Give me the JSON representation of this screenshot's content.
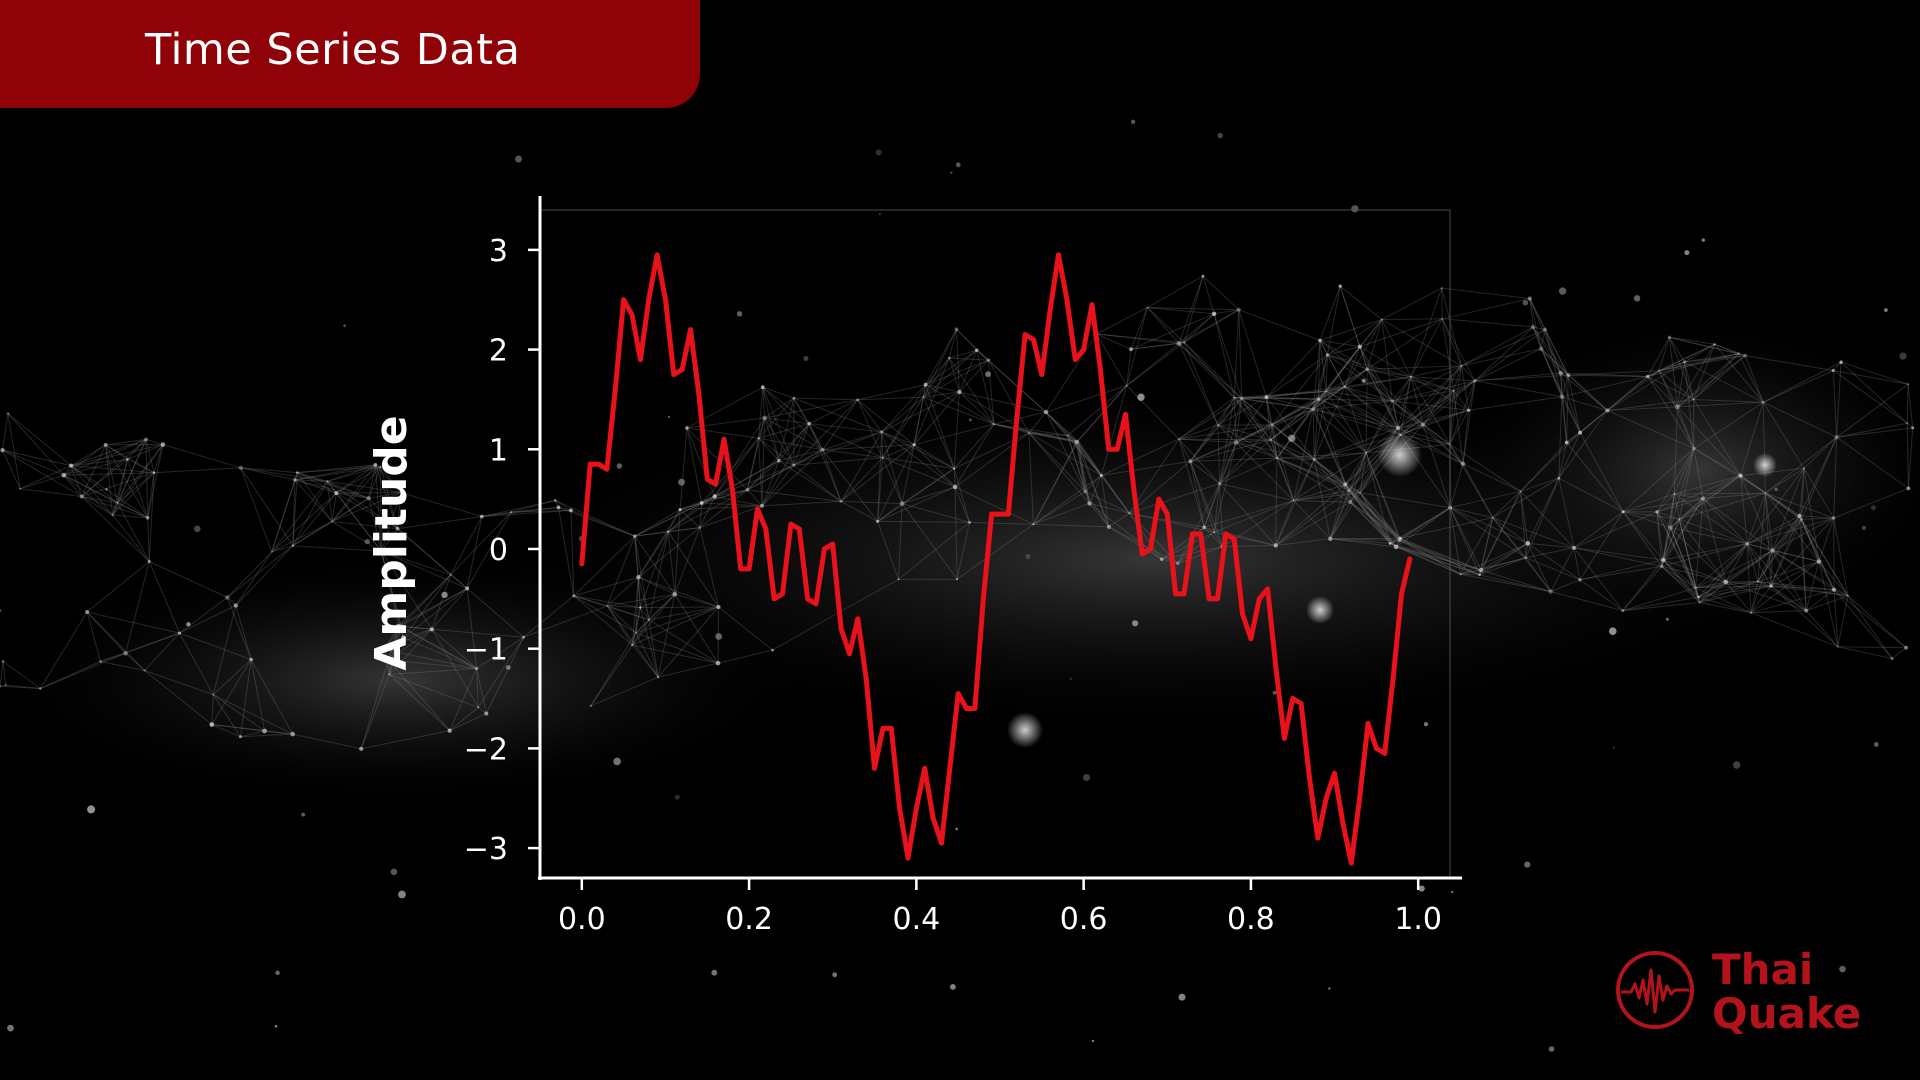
{
  "header": {
    "title": "Time Series Data"
  },
  "logo": {
    "line1": "Thai",
    "line2": "Quake",
    "icon": "seismic-wave-icon",
    "color": "#b3141b"
  },
  "colors": {
    "banner": "#8e0208",
    "line": "#e8121a",
    "axis": "#ffffff",
    "background": "#000000"
  },
  "chart_data": {
    "type": "line",
    "title": "",
    "xlabel": "",
    "ylabel": "Amplitude",
    "xlim": [
      -0.05,
      1.05
    ],
    "ylim": [
      -3.3,
      3.4
    ],
    "xticks": [
      "0.0",
      "0.2",
      "0.4",
      "0.6",
      "0.8",
      "1.0"
    ],
    "yticks": [
      "3",
      "2",
      "1",
      "0",
      "−1",
      "−2",
      "−3"
    ],
    "grid": false,
    "series": [
      {
        "color": "#e8121a",
        "x": [
          0.0,
          0.01,
          0.02,
          0.03,
          0.04,
          0.05,
          0.06,
          0.07,
          0.08,
          0.09,
          0.1,
          0.11,
          0.12,
          0.13,
          0.14,
          0.15,
          0.16,
          0.17,
          0.18,
          0.19,
          0.2,
          0.21,
          0.22,
          0.23,
          0.24,
          0.25,
          0.26,
          0.27,
          0.28,
          0.29,
          0.3,
          0.31,
          0.32,
          0.33,
          0.34,
          0.35,
          0.36,
          0.37,
          0.38,
          0.39,
          0.4,
          0.41,
          0.42,
          0.43,
          0.44,
          0.45,
          0.46,
          0.47,
          0.48,
          0.49,
          0.5,
          0.51,
          0.52,
          0.53,
          0.54,
          0.55,
          0.56,
          0.57,
          0.58,
          0.59,
          0.6,
          0.61,
          0.62,
          0.63,
          0.64,
          0.65,
          0.66,
          0.67,
          0.68,
          0.69,
          0.7,
          0.71,
          0.72,
          0.73,
          0.74,
          0.75,
          0.76,
          0.77,
          0.78,
          0.79,
          0.8,
          0.81,
          0.82,
          0.83,
          0.84,
          0.85,
          0.86,
          0.87,
          0.88,
          0.89,
          0.9,
          0.91,
          0.92,
          0.93,
          0.94,
          0.95,
          0.96,
          0.97,
          0.98,
          0.99
        ],
        "y": [
          -0.15,
          0.85,
          0.85,
          0.8,
          1.6,
          2.5,
          2.35,
          1.9,
          2.5,
          2.95,
          2.5,
          1.75,
          1.8,
          2.2,
          1.55,
          0.7,
          0.65,
          1.1,
          0.6,
          -0.2,
          -0.2,
          0.4,
          0.2,
          -0.5,
          -0.45,
          0.25,
          0.2,
          -0.5,
          -0.55,
          0.0,
          0.05,
          -0.8,
          -1.05,
          -0.7,
          -1.3,
          -2.2,
          -1.8,
          -1.8,
          -2.6,
          -3.1,
          -2.6,
          -2.2,
          -2.7,
          -2.95,
          -2.2,
          -1.45,
          -1.6,
          -1.6,
          -0.5,
          0.35,
          0.35,
          0.35,
          1.3,
          2.15,
          2.1,
          1.75,
          2.4,
          2.95,
          2.5,
          1.9,
          2.0,
          2.45,
          1.8,
          1.0,
          1.0,
          1.35,
          0.6,
          -0.05,
          0.0,
          0.5,
          0.35,
          -0.45,
          -0.45,
          0.15,
          0.15,
          -0.5,
          -0.5,
          0.15,
          0.1,
          -0.65,
          -0.9,
          -0.5,
          -0.4,
          -1.2,
          -1.9,
          -1.5,
          -1.55,
          -2.3,
          -2.9,
          -2.5,
          -2.25,
          -2.75,
          -3.15,
          -2.5,
          -1.75,
          -2.0,
          -2.05,
          -1.3,
          -0.45,
          -0.1
        ]
      }
    ]
  }
}
